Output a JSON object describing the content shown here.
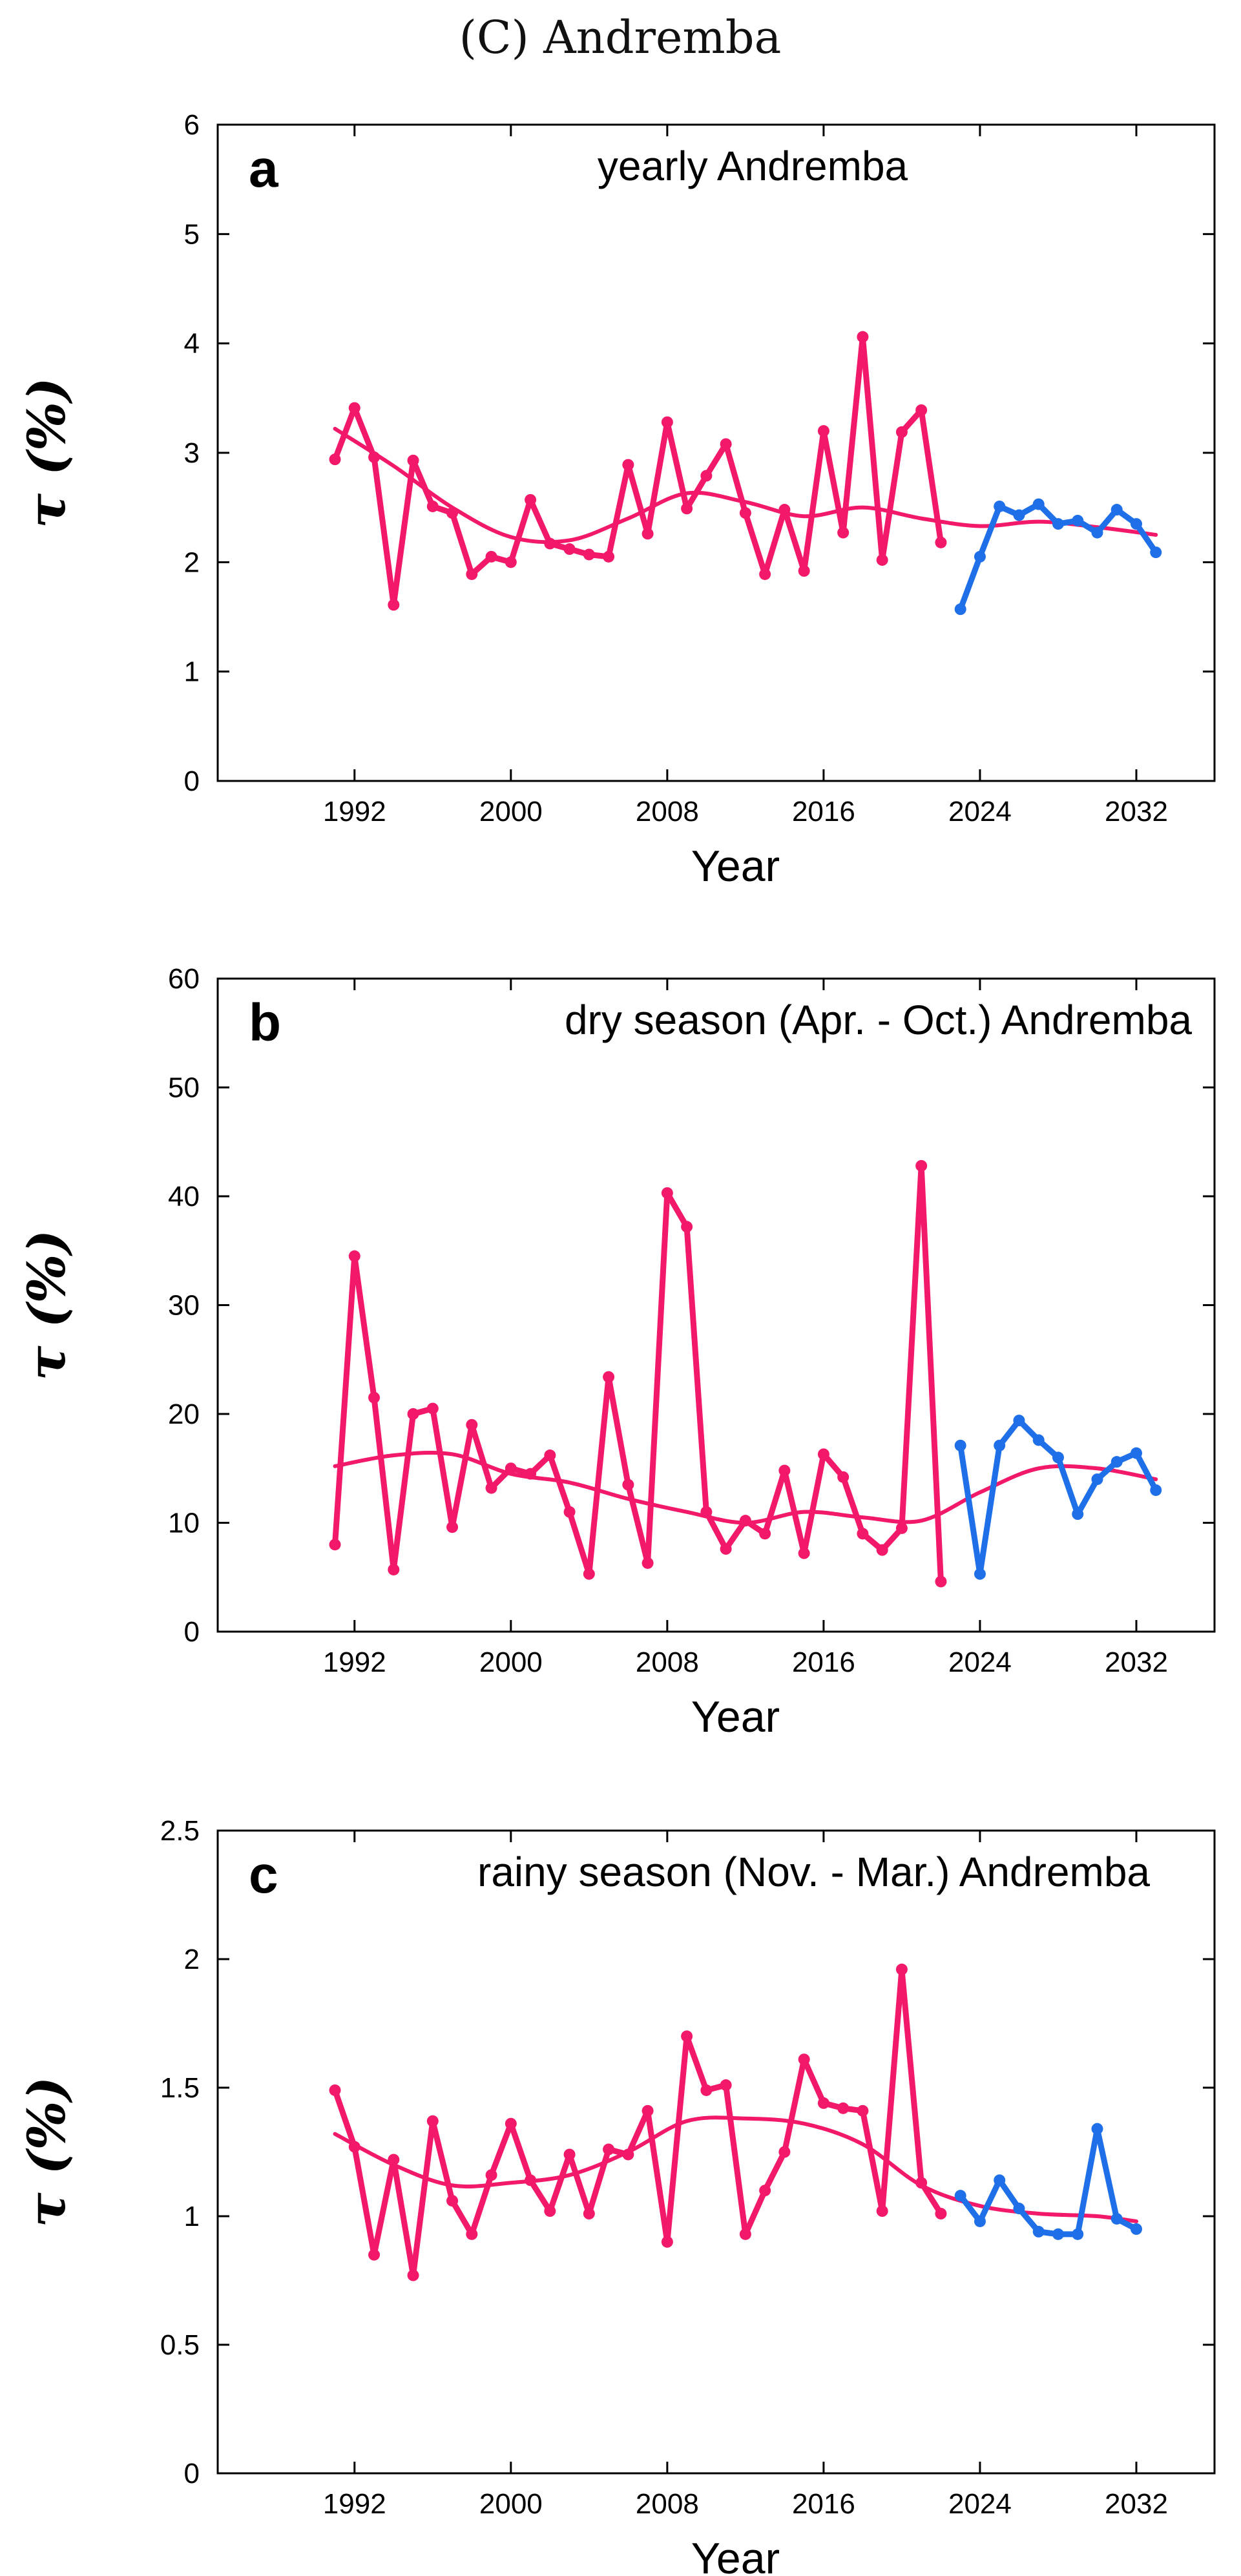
{
  "figure_title": "(C) Andremba",
  "colors": {
    "observed": "#f2186a",
    "forecast": "#1f6fe8",
    "trend": "#f2186a"
  },
  "chart_data": [
    {
      "type": "line",
      "panel_letter": "a",
      "caption": "yearly Andremba",
      "xlabel": "Year",
      "ylabel": "τ (%)",
      "xlim": [
        1985,
        2036
      ],
      "ylim": [
        0,
        6
      ],
      "xticks": [
        1992,
        2000,
        2008,
        2016,
        2024,
        2032
      ],
      "yticks": [
        0,
        1,
        2,
        3,
        4,
        5,
        6
      ],
      "ytick_labels": [
        "0",
        "1",
        "2",
        "3",
        "4",
        "5",
        "6"
      ],
      "series": [
        {
          "role": "observed",
          "x": [
            1991,
            1992,
            1993,
            1994,
            1995,
            1996,
            1997,
            1998,
            1999,
            2000,
            2001,
            2002,
            2003,
            2004,
            2005,
            2006,
            2007,
            2008,
            2009,
            2010,
            2011,
            2012,
            2013,
            2014,
            2015,
            2016,
            2017,
            2018,
            2019,
            2020,
            2021,
            2022
          ],
          "values": [
            2.94,
            3.41,
            2.96,
            1.61,
            2.93,
            2.51,
            2.45,
            1.89,
            2.05,
            2.0,
            2.57,
            2.17,
            2.12,
            2.07,
            2.05,
            2.89,
            2.26,
            3.28,
            2.49,
            2.79,
            3.08,
            2.45,
            1.89,
            2.48,
            1.92,
            3.2,
            2.27,
            4.06,
            2.02,
            3.19,
            3.39,
            2.18
          ]
        },
        {
          "role": "forecast",
          "x": [
            2023,
            2024,
            2025,
            2026,
            2027,
            2028,
            2029,
            2030,
            2031,
            2032,
            2033
          ],
          "values": [
            1.57,
            2.05,
            2.51,
            2.43,
            2.53,
            2.35,
            2.38,
            2.27,
            2.48,
            2.35,
            2.09
          ]
        },
        {
          "role": "trend",
          "x": [
            1991,
            1994,
            1997,
            2000,
            2003,
            2006,
            2009,
            2012,
            2015,
            2018,
            2021,
            2024,
            2027,
            2030,
            2033
          ],
          "values": [
            3.22,
            2.88,
            2.5,
            2.23,
            2.2,
            2.4,
            2.63,
            2.55,
            2.42,
            2.5,
            2.4,
            2.33,
            2.37,
            2.32,
            2.25
          ]
        }
      ]
    },
    {
      "type": "line",
      "panel_letter": "b",
      "caption": "dry season (Apr. - Oct.) Andremba",
      "xlabel": "Year",
      "ylabel": "τ (%)",
      "xlim": [
        1985,
        2036
      ],
      "ylim": [
        0,
        60
      ],
      "xticks": [
        1992,
        2000,
        2008,
        2016,
        2024,
        2032
      ],
      "yticks": [
        0,
        10,
        20,
        30,
        40,
        50,
        60
      ],
      "ytick_labels": [
        "0",
        "10",
        "20",
        "30",
        "40",
        "50",
        "60"
      ],
      "series": [
        {
          "role": "observed",
          "x": [
            1991,
            1992,
            1993,
            1994,
            1995,
            1996,
            1997,
            1998,
            1999,
            2000,
            2001,
            2002,
            2003,
            2004,
            2005,
            2006,
            2007,
            2008,
            2009,
            2010,
            2011,
            2012,
            2013,
            2014,
            2015,
            2016,
            2017,
            2018,
            2019,
            2020,
            2021,
            2022
          ],
          "values": [
            8.0,
            34.5,
            21.5,
            5.7,
            20.0,
            20.5,
            9.6,
            19.0,
            13.2,
            15.0,
            14.5,
            16.2,
            11.0,
            5.3,
            23.4,
            13.5,
            6.3,
            40.3,
            37.2,
            11.0,
            7.6,
            10.2,
            9.0,
            14.8,
            7.2,
            16.3,
            14.2,
            9.0,
            7.5,
            9.5,
            42.8,
            4.6
          ]
        },
        {
          "role": "forecast",
          "x": [
            2023,
            2024,
            2025,
            2026,
            2027,
            2028,
            2029,
            2030,
            2031,
            2032,
            2033
          ],
          "values": [
            17.1,
            5.3,
            17.1,
            19.4,
            17.6,
            16.0,
            10.8,
            14.0,
            15.6,
            16.4,
            13.0
          ]
        },
        {
          "role": "trend",
          "x": [
            1991,
            1994,
            1997,
            2000,
            2003,
            2006,
            2009,
            2012,
            2015,
            2018,
            2021,
            2024,
            2027,
            2030,
            2033
          ],
          "values": [
            15.2,
            16.2,
            16.3,
            14.5,
            13.7,
            12.2,
            11.0,
            10.0,
            11.0,
            10.5,
            10.2,
            12.8,
            15.0,
            15.0,
            14.0
          ]
        }
      ]
    },
    {
      "type": "line",
      "panel_letter": "c",
      "caption": "rainy season (Nov. - Mar.) Andremba",
      "xlabel": "Year",
      "ylabel": "τ (%)",
      "xlim": [
        1985,
        2036
      ],
      "ylim": [
        0,
        2.5
      ],
      "xticks": [
        1992,
        2000,
        2008,
        2016,
        2024,
        2032
      ],
      "yticks": [
        0,
        0.5,
        1,
        1.5,
        2,
        2.5
      ],
      "ytick_labels": [
        "0",
        "0.5",
        "1",
        "1.5",
        "2",
        "2.5"
      ],
      "series": [
        {
          "role": "observed",
          "x": [
            1991,
            1992,
            1993,
            1994,
            1995,
            1996,
            1997,
            1998,
            1999,
            2000,
            2001,
            2002,
            2003,
            2004,
            2005,
            2006,
            2007,
            2008,
            2009,
            2010,
            2011,
            2012,
            2013,
            2014,
            2015,
            2016,
            2017,
            2018,
            2019,
            2020,
            2021,
            2022
          ],
          "values": [
            1.49,
            1.27,
            0.85,
            1.22,
            0.77,
            1.37,
            1.06,
            0.93,
            1.16,
            1.36,
            1.14,
            1.02,
            1.24,
            1.01,
            1.26,
            1.24,
            1.41,
            0.9,
            1.7,
            1.49,
            1.51,
            0.93,
            1.1,
            1.25,
            1.61,
            1.44,
            1.42,
            1.41,
            1.02,
            1.96,
            1.13,
            1.01
          ]
        },
        {
          "role": "forecast",
          "x": [
            2023,
            2024,
            2025,
            2026,
            2027,
            2028,
            2029,
            2030,
            2031,
            2032
          ],
          "values": [
            1.08,
            0.98,
            1.14,
            1.03,
            0.94,
            0.93,
            0.93,
            1.34,
            0.99,
            0.95
          ]
        },
        {
          "role": "trend",
          "x": [
            1991,
            1994,
            1997,
            2000,
            2003,
            2006,
            2009,
            2012,
            2015,
            2018,
            2021,
            2024,
            2027,
            2030,
            2032
          ],
          "values": [
            1.32,
            1.2,
            1.12,
            1.13,
            1.16,
            1.25,
            1.37,
            1.38,
            1.36,
            1.28,
            1.12,
            1.04,
            1.01,
            1.0,
            0.98
          ]
        }
      ]
    }
  ]
}
